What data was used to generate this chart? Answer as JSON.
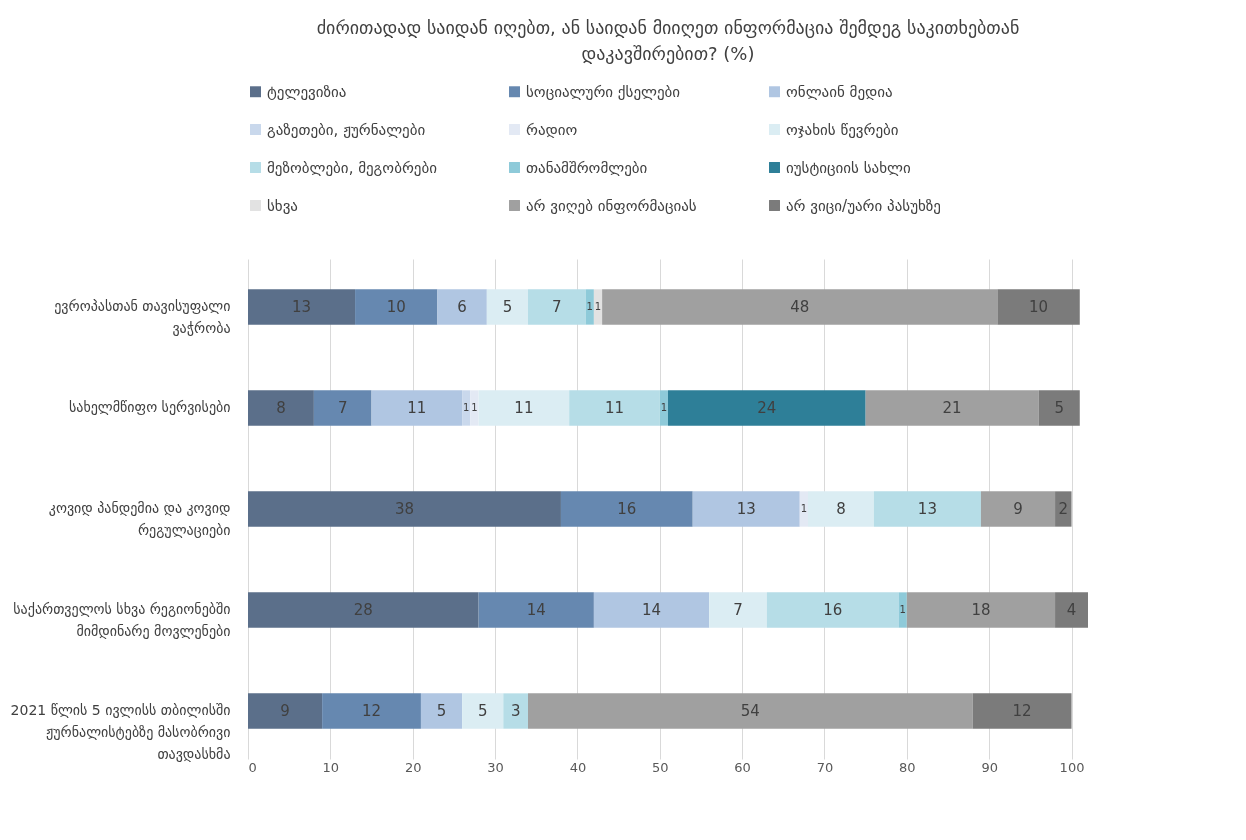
{
  "chart_data": {
    "type": "bar",
    "orientation": "horizontal",
    "stacked": true,
    "title": "ძირითადად საიდან იღებთ, ან საიდან მიიღეთ ინფორმაცია შემდეგ საკითხებთან დაკავშირებით? (%)",
    "categories": [
      "ევროპასთან თავისუფალი ვაჭრობა",
      "სახელმწიფო სერვისები",
      "კოვიდ პანდემია და კოვიდ რეგულაციები",
      "საქართველოს სხვა რეგიონებში მიმდინარე მოვლენები",
      "2021 წლის 5 ივლისს თბილისში ჟურნალისტებზე მასობრივი თავდასხმა"
    ],
    "series": [
      {
        "name": "ტელევიზია",
        "color": "#5b6f8a",
        "values": [
          13,
          8,
          38,
          28,
          9
        ]
      },
      {
        "name": "სოციალური ქსელები",
        "color": "#6688b0",
        "values": [
          10,
          7,
          16,
          14,
          12
        ]
      },
      {
        "name": "ონლაინ მედია",
        "color": "#b0c6e2",
        "values": [
          6,
          11,
          13,
          14,
          5
        ]
      },
      {
        "name": "გაზეთები, ჟურნალები",
        "color": "#c9d8ec",
        "values": [
          null,
          1,
          null,
          null,
          null
        ]
      },
      {
        "name": "რადიო",
        "color": "#e3e9f4",
        "values": [
          null,
          1,
          1,
          null,
          null
        ]
      },
      {
        "name": "ოჯახის წევრები",
        "color": "#dbedf3",
        "values": [
          5,
          11,
          8,
          7,
          5
        ]
      },
      {
        "name": "მეზობლები, მეგობრები",
        "color": "#b6dde7",
        "values": [
          7,
          11,
          13,
          16,
          3
        ]
      },
      {
        "name": "თანამშრომლები",
        "color": "#8ecad9",
        "values": [
          1,
          1,
          null,
          1,
          null
        ]
      },
      {
        "name": "იუსტიციის სახლი",
        "color": "#2e7f98",
        "values": [
          null,
          24,
          null,
          null,
          null
        ]
      },
      {
        "name": "სხვა",
        "color": "#e2e2e2",
        "values": [
          1,
          null,
          null,
          null,
          null
        ]
      },
      {
        "name": "არ ვიღებ ინფორმაციას",
        "color": "#a0a0a0",
        "values": [
          48,
          21,
          9,
          18,
          54
        ]
      },
      {
        "name": "არ ვიცი/უარი პასუხზე",
        "color": "#7b7b7b",
        "values": [
          10,
          5,
          2,
          4,
          12
        ]
      }
    ],
    "xlim": [
      0,
      102
    ],
    "xticks": [
      0,
      10,
      20,
      30,
      40,
      50,
      60,
      70,
      80,
      90,
      100
    ],
    "grid": "x",
    "legend": "top",
    "data_labels": true
  }
}
